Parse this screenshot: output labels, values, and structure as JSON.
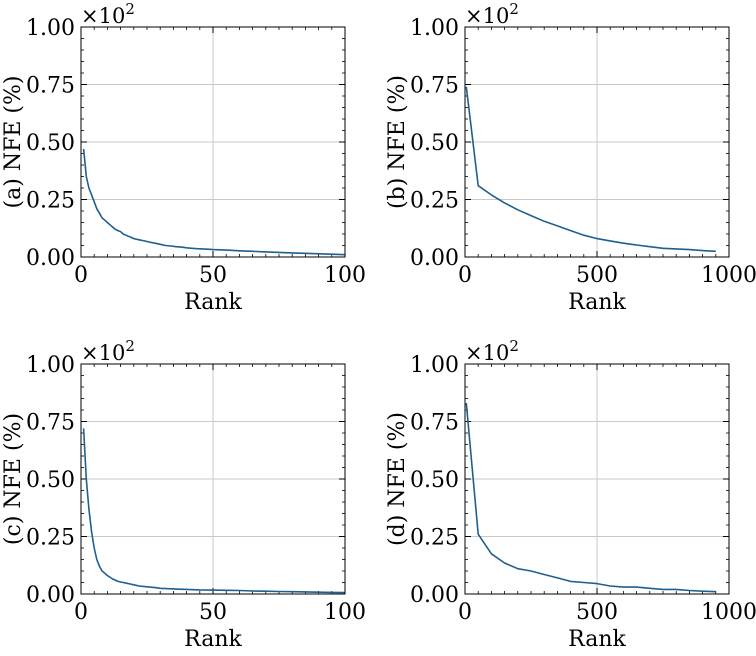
{
  "chart_data": [
    {
      "type": "line",
      "xlabel": "Rank",
      "ylabel": "(a) NFE (%)",
      "xlim": [
        0,
        100
      ],
      "ylim": [
        0,
        1.0
      ],
      "xticks": [
        "0",
        "50",
        "100"
      ],
      "yticks": [
        "0.00",
        "0.25",
        "0.50",
        "0.75",
        "1.00"
      ],
      "y_multiplier": "×10",
      "y_multiplier_exp": "2",
      "grid": true,
      "series": [
        {
          "color": "#1f5f8f",
          "x": [
            1,
            2,
            3,
            4,
            5,
            6,
            7,
            8,
            9,
            10,
            11,
            12,
            13,
            14,
            15,
            16,
            17,
            18,
            19,
            20,
            22,
            24,
            26,
            28,
            30,
            32,
            34,
            36,
            38,
            40,
            42,
            44,
            46,
            48,
            50,
            55,
            60,
            65,
            70,
            75,
            80,
            85,
            90,
            95,
            100
          ],
          "y": [
            0.47,
            0.35,
            0.3,
            0.27,
            0.24,
            0.21,
            0.19,
            0.17,
            0.16,
            0.15,
            0.14,
            0.13,
            0.12,
            0.115,
            0.11,
            0.1,
            0.095,
            0.09,
            0.085,
            0.08,
            0.075,
            0.07,
            0.065,
            0.06,
            0.055,
            0.05,
            0.048,
            0.045,
            0.043,
            0.04,
            0.038,
            0.036,
            0.035,
            0.034,
            0.032,
            0.03,
            0.027,
            0.025,
            0.022,
            0.02,
            0.018,
            0.016,
            0.014,
            0.012,
            0.01
          ]
        }
      ]
    },
    {
      "type": "line",
      "xlabel": "Rank",
      "ylabel": "(b) NFE (%)",
      "xlim": [
        0,
        1000
      ],
      "ylim": [
        0,
        1.0
      ],
      "xticks": [
        "0",
        "500",
        "1000"
      ],
      "yticks": [
        "0.00",
        "0.25",
        "0.50",
        "0.75",
        "1.00"
      ],
      "y_multiplier": "×10",
      "y_multiplier_exp": "2",
      "grid": true,
      "series": [
        {
          "color": "#1f5f8f",
          "x": [
            5,
            50,
            100,
            150,
            200,
            250,
            300,
            350,
            400,
            450,
            500,
            550,
            600,
            650,
            700,
            750,
            800,
            850,
            900,
            950
          ],
          "y": [
            0.74,
            0.31,
            0.27,
            0.235,
            0.205,
            0.18,
            0.155,
            0.135,
            0.115,
            0.095,
            0.08,
            0.07,
            0.06,
            0.052,
            0.045,
            0.038,
            0.035,
            0.032,
            0.028,
            0.025
          ]
        }
      ]
    },
    {
      "type": "line",
      "xlabel": "Rank",
      "ylabel": "(c) NFE (%)",
      "xlim": [
        0,
        100
      ],
      "ylim": [
        0,
        1.0
      ],
      "xticks": [
        "0",
        "50",
        "100"
      ],
      "yticks": [
        "0.00",
        "0.25",
        "0.50",
        "0.75",
        "1.00"
      ],
      "y_multiplier": "×10",
      "y_multiplier_exp": "2",
      "grid": true,
      "series": [
        {
          "color": "#1f5f8f",
          "x": [
            1,
            2,
            3,
            4,
            5,
            6,
            7,
            8,
            9,
            10,
            12,
            14,
            16,
            18,
            20,
            22,
            24,
            26,
            28,
            30,
            35,
            40,
            45,
            50,
            55,
            60,
            65,
            70,
            75,
            80,
            85,
            90,
            95,
            100
          ],
          "y": [
            0.72,
            0.5,
            0.37,
            0.27,
            0.2,
            0.15,
            0.12,
            0.1,
            0.09,
            0.08,
            0.065,
            0.055,
            0.05,
            0.045,
            0.04,
            0.035,
            0.032,
            0.03,
            0.028,
            0.025,
            0.022,
            0.02,
            0.018,
            0.017,
            0.016,
            0.015,
            0.013,
            0.012,
            0.011,
            0.01,
            0.009,
            0.008,
            0.007,
            0.006
          ]
        }
      ]
    },
    {
      "type": "line",
      "xlabel": "Rank",
      "ylabel": "(d) NFE (%)",
      "xlim": [
        0,
        1000
      ],
      "ylim": [
        0,
        1.0
      ],
      "xticks": [
        "0",
        "500",
        "1000"
      ],
      "yticks": [
        "0.00",
        "0.25",
        "0.50",
        "0.75",
        "1.00"
      ],
      "y_multiplier": "×10",
      "y_multiplier_exp": "2",
      "grid": true,
      "series": [
        {
          "color": "#1f5f8f",
          "x": [
            5,
            50,
            100,
            150,
            200,
            250,
            300,
            350,
            400,
            450,
            500,
            550,
            600,
            650,
            700,
            750,
            800,
            850,
            900,
            950
          ],
          "y": [
            0.83,
            0.26,
            0.175,
            0.135,
            0.11,
            0.1,
            0.085,
            0.07,
            0.055,
            0.05,
            0.045,
            0.035,
            0.03,
            0.03,
            0.025,
            0.02,
            0.02,
            0.015,
            0.012,
            0.01
          ]
        }
      ]
    }
  ]
}
